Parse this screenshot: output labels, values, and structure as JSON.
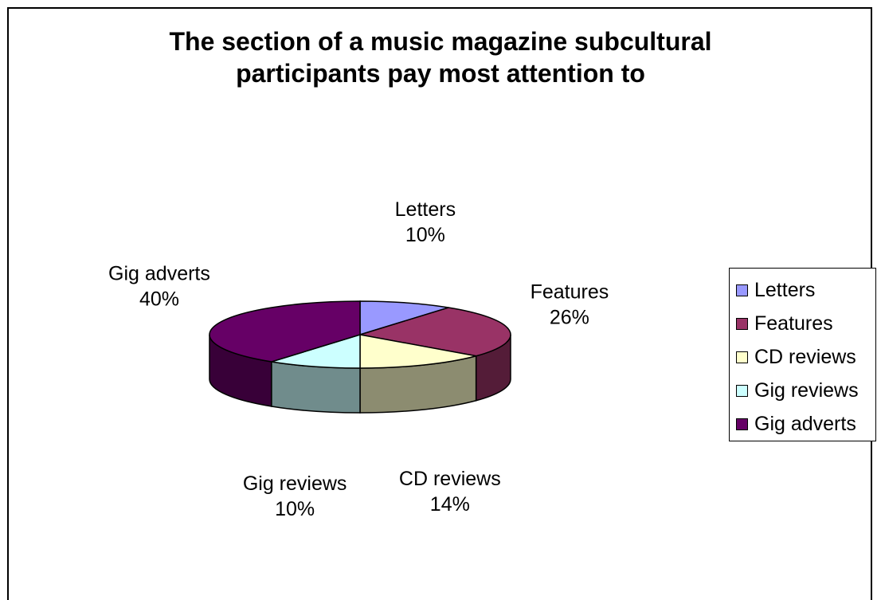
{
  "chart_data": {
    "type": "pie",
    "title_lines": [
      "The section of a music magazine subcultural",
      "participants pay most attention to"
    ],
    "slices": [
      {
        "name": "Letters",
        "value": 10,
        "label": "10%",
        "color": "#9999ff"
      },
      {
        "name": "Features",
        "value": 26,
        "label": "26%",
        "color": "#993366"
      },
      {
        "name": "CD reviews",
        "value": 14,
        "label": "14%",
        "color": "#ffffcc"
      },
      {
        "name": "Gig reviews",
        "value": 10,
        "label": "10%",
        "color": "#ccffff"
      },
      {
        "name": "Gig adverts",
        "value": 40,
        "label": "40%",
        "color": "#660066"
      }
    ],
    "legend_placement": "right"
  }
}
